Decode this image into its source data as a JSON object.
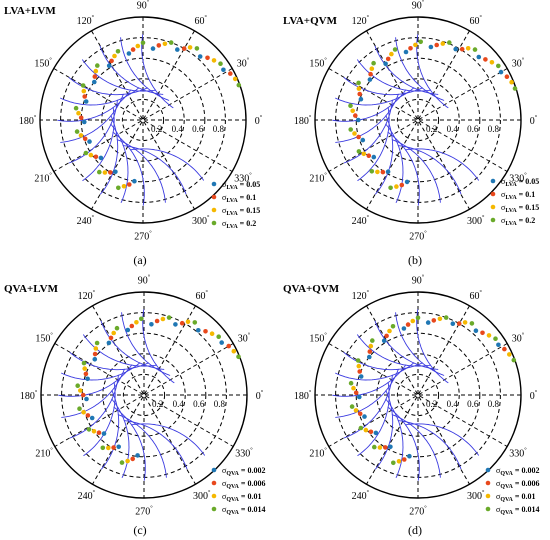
{
  "chart_data": [
    {
      "type": "scatter",
      "title": "LVA+LVM",
      "caption": "(a)",
      "angular_ticks": [
        "0",
        "30",
        "60",
        "90",
        "120",
        "150",
        "180",
        "210",
        "240",
        "270",
        "300",
        "330"
      ],
      "radial_ticks": [
        "0.2",
        "0.4",
        "0.6",
        "0.8"
      ],
      "rlim": [
        0,
        1
      ],
      "curve_color": "#3a3ae0",
      "legend": {
        "symbol": "σ",
        "subscript": "LVA",
        "series": [
          {
            "value": "0.05",
            "color": "#1f77b4"
          },
          {
            "value": "0.1",
            "color": "#e8481c"
          },
          {
            "value": "0.15",
            "color": "#f5b800"
          },
          {
            "value": "0.2",
            "color": "#6aaa2a"
          }
        ]
      },
      "curve_centers_deg": [
        45,
        60,
        75,
        90,
        105,
        120,
        135,
        150,
        165,
        180,
        195,
        210,
        225,
        240,
        255,
        270
      ],
      "series": [
        {
          "name": "σLVA = 0.05",
          "points": [
            [
              0.92,
              32
            ],
            [
              0.83,
              48
            ],
            [
              0.76,
              64
            ],
            [
              0.7,
              82
            ],
            [
              0.66,
              102
            ],
            [
              0.62,
              122
            ],
            [
              0.6,
              142
            ],
            [
              0.58,
              162
            ],
            [
              0.57,
              182
            ],
            [
              0.56,
              202
            ],
            [
              0.55,
              222
            ],
            [
              0.57,
              242
            ],
            [
              0.6,
              262
            ]
          ]
        },
        {
          "name": "σLVA = 0.1",
          "points": [
            [
              0.96,
              28
            ],
            [
              0.87,
              44
            ],
            [
              0.8,
              60
            ],
            [
              0.74,
              78
            ],
            [
              0.69,
              98
            ],
            [
              0.65,
              118
            ],
            [
              0.63,
              138
            ],
            [
              0.61,
              158
            ],
            [
              0.6,
              178
            ],
            [
              0.59,
              198
            ],
            [
              0.58,
              218
            ],
            [
              0.6,
              238
            ],
            [
              0.64,
              258
            ]
          ]
        },
        {
          "name": "σLVA = 0.15",
          "points": [
            [
              0.98,
              24
            ],
            [
              0.9,
              40
            ],
            [
              0.84,
              57
            ],
            [
              0.77,
              74
            ],
            [
              0.72,
              94
            ],
            [
              0.68,
              114
            ],
            [
              0.66,
              134
            ],
            [
              0.64,
              154
            ],
            [
              0.63,
              174
            ],
            [
              0.62,
              194
            ],
            [
              0.61,
              214
            ],
            [
              0.63,
              234
            ],
            [
              0.67,
              254
            ]
          ]
        },
        {
          "name": "σLVA = 0.2",
          "points": [
            [
              0.99,
              20
            ],
            [
              0.93,
              36
            ],
            [
              0.87,
              53
            ],
            [
              0.8,
              70
            ],
            [
              0.75,
              90
            ],
            [
              0.71,
              110
            ],
            [
              0.69,
              130
            ],
            [
              0.67,
              150
            ],
            [
              0.66,
              170
            ],
            [
              0.65,
              190
            ],
            [
              0.64,
              210
            ],
            [
              0.66,
              230
            ],
            [
              0.7,
              250
            ]
          ]
        }
      ]
    },
    {
      "type": "scatter",
      "title": "LVA+QVM",
      "caption": "(b)",
      "angular_ticks": [
        "0",
        "30",
        "60",
        "90",
        "120",
        "150",
        "180",
        "210",
        "240",
        "270",
        "300",
        "330"
      ],
      "radial_ticks": [
        "0.2",
        "0.4",
        "0.6",
        "0.8"
      ],
      "rlim": [
        0,
        1
      ],
      "curve_color": "#3a3ae0",
      "legend": {
        "symbol": "σ",
        "subscript": "LVA",
        "series": [
          {
            "value": "0.05",
            "color": "#1f77b4"
          },
          {
            "value": "0.1",
            "color": "#e8481c"
          },
          {
            "value": "0.15",
            "color": "#f5b800"
          },
          {
            "value": "0.2",
            "color": "#6aaa2a"
          }
        ]
      },
      "curve_centers_deg": [
        45,
        60,
        75,
        90,
        105,
        120,
        135,
        150,
        165,
        180,
        195,
        210,
        225,
        240,
        255,
        270
      ],
      "series": [
        {
          "name": "σLVA = 0.05",
          "points": [
            [
              0.93,
              30
            ],
            [
              0.85,
              46
            ],
            [
              0.78,
              62
            ],
            [
              0.72,
              80
            ],
            [
              0.67,
              100
            ],
            [
              0.63,
              120
            ],
            [
              0.61,
              140
            ],
            [
              0.59,
              160
            ],
            [
              0.58,
              180
            ],
            [
              0.57,
              200
            ],
            [
              0.56,
              220
            ],
            [
              0.58,
              240
            ],
            [
              0.61,
              260
            ]
          ]
        },
        {
          "name": "σLVA = 0.1",
          "points": [
            [
              0.96,
              26
            ],
            [
              0.88,
              42
            ],
            [
              0.81,
              58
            ],
            [
              0.75,
              76
            ],
            [
              0.7,
              96
            ],
            [
              0.66,
              116
            ],
            [
              0.64,
              136
            ],
            [
              0.62,
              156
            ],
            [
              0.61,
              176
            ],
            [
              0.6,
              196
            ],
            [
              0.59,
              216
            ],
            [
              0.61,
              236
            ],
            [
              0.65,
              256
            ]
          ]
        },
        {
          "name": "σLVA = 0.15",
          "points": [
            [
              0.98,
              22
            ],
            [
              0.91,
              38
            ],
            [
              0.85,
              55
            ],
            [
              0.78,
              72
            ],
            [
              0.73,
              92
            ],
            [
              0.69,
              112
            ],
            [
              0.67,
              132
            ],
            [
              0.65,
              152
            ],
            [
              0.64,
              172
            ],
            [
              0.63,
              192
            ],
            [
              0.62,
              212
            ],
            [
              0.64,
              232
            ],
            [
              0.68,
              252
            ]
          ]
        },
        {
          "name": "σLVA = 0.2",
          "points": [
            [
              0.99,
              18
            ],
            [
              0.94,
              34
            ],
            [
              0.88,
              51
            ],
            [
              0.81,
              68
            ],
            [
              0.76,
              88
            ],
            [
              0.72,
              108
            ],
            [
              0.7,
              128
            ],
            [
              0.68,
              148
            ],
            [
              0.67,
              168
            ],
            [
              0.66,
              188
            ],
            [
              0.65,
              208
            ],
            [
              0.67,
              228
            ],
            [
              0.71,
              248
            ]
          ]
        }
      ]
    },
    {
      "type": "scatter",
      "title": "QVA+LVM",
      "caption": "(c)",
      "angular_ticks": [
        "0",
        "30",
        "60",
        "90",
        "120",
        "150",
        "180",
        "210",
        "240",
        "270",
        "300",
        "330"
      ],
      "radial_ticks": [
        "0.2",
        "0.4",
        "0.6",
        "0.8"
      ],
      "rlim": [
        0,
        1
      ],
      "curve_color": "#3a3ae0",
      "legend": {
        "symbol": "σ",
        "subscript": "QVA",
        "series": [
          {
            "value": "0.002",
            "color": "#1f77b4"
          },
          {
            "value": "0.006",
            "color": "#e8481c"
          },
          {
            "value": "0.01",
            "color": "#f5b800"
          },
          {
            "value": "0.014",
            "color": "#6aaa2a"
          }
        ]
      },
      "curve_centers_deg": [
        45,
        60,
        75,
        90,
        105,
        120,
        135,
        150,
        165,
        180,
        195,
        210,
        225,
        240,
        255,
        270
      ],
      "series": [
        {
          "name": "σQVA = 0.002",
          "points": [
            [
              0.91,
              34
            ],
            [
              0.82,
              50
            ],
            [
              0.75,
              66
            ],
            [
              0.69,
              84
            ],
            [
              0.65,
              104
            ],
            [
              0.61,
              124
            ],
            [
              0.59,
              144
            ],
            [
              0.57,
              164
            ],
            [
              0.56,
              184
            ],
            [
              0.55,
              204
            ],
            [
              0.54,
              224
            ],
            [
              0.56,
              244
            ],
            [
              0.59,
              264
            ]
          ]
        },
        {
          "name": "σQVA = 0.006",
          "points": [
            [
              0.95,
              30
            ],
            [
              0.86,
              46
            ],
            [
              0.79,
              62
            ],
            [
              0.73,
              80
            ],
            [
              0.68,
              100
            ],
            [
              0.64,
              120
            ],
            [
              0.62,
              140
            ],
            [
              0.6,
              160
            ],
            [
              0.59,
              180
            ],
            [
              0.58,
              200
            ],
            [
              0.57,
              220
            ],
            [
              0.59,
              240
            ],
            [
              0.63,
              260
            ]
          ]
        },
        {
          "name": "σQVA = 0.01",
          "points": [
            [
              0.97,
              26
            ],
            [
              0.89,
              42
            ],
            [
              0.83,
              59
            ],
            [
              0.76,
              76
            ],
            [
              0.71,
              96
            ],
            [
              0.67,
              116
            ],
            [
              0.65,
              136
            ],
            [
              0.63,
              156
            ],
            [
              0.62,
              176
            ],
            [
              0.61,
              196
            ],
            [
              0.6,
              216
            ],
            [
              0.62,
              236
            ],
            [
              0.66,
              256
            ]
          ]
        },
        {
          "name": "σQVA = 0.014",
          "points": [
            [
              0.99,
              22
            ],
            [
              0.92,
              38
            ],
            [
              0.86,
              55
            ],
            [
              0.79,
              72
            ],
            [
              0.74,
              92
            ],
            [
              0.7,
              112
            ],
            [
              0.68,
              132
            ],
            [
              0.66,
              152
            ],
            [
              0.65,
              172
            ],
            [
              0.64,
              192
            ],
            [
              0.63,
              212
            ],
            [
              0.65,
              232
            ],
            [
              0.69,
              252
            ]
          ]
        }
      ]
    },
    {
      "type": "scatter",
      "title": "QVA+QVM",
      "caption": "(d)",
      "angular_ticks": [
        "0",
        "30",
        "60",
        "90",
        "120",
        "150",
        "180",
        "210",
        "240",
        "270",
        "300",
        "330"
      ],
      "radial_ticks": [
        "0.2",
        "0.4",
        "0.6",
        "0.8"
      ],
      "rlim": [
        0,
        1
      ],
      "curve_color": "#3a3ae0",
      "legend": {
        "symbol": "σ",
        "subscript": "QVA",
        "series": [
          {
            "value": "0.002",
            "color": "#1f77b4"
          },
          {
            "value": "0.006",
            "color": "#e8481c"
          },
          {
            "value": "0.01",
            "color": "#f5b800"
          },
          {
            "value": "0.014",
            "color": "#6aaa2a"
          }
        ]
      },
      "curve_centers_deg": [
        45,
        60,
        75,
        90,
        105,
        120,
        135,
        150,
        165,
        180,
        195,
        210,
        225,
        240,
        255,
        270
      ],
      "series": [
        {
          "name": "σQVA = 0.002",
          "points": [
            [
              0.92,
              32
            ],
            [
              0.84,
              48
            ],
            [
              0.77,
              64
            ],
            [
              0.71,
              82
            ],
            [
              0.66,
              102
            ],
            [
              0.62,
              122
            ],
            [
              0.6,
              142
            ],
            [
              0.58,
              162
            ],
            [
              0.57,
              182
            ],
            [
              0.56,
              202
            ],
            [
              0.55,
              222
            ],
            [
              0.57,
              242
            ],
            [
              0.6,
              262
            ]
          ]
        },
        {
          "name": "σQVA = 0.006",
          "points": [
            [
              0.95,
              28
            ],
            [
              0.87,
              44
            ],
            [
              0.8,
              60
            ],
            [
              0.74,
              78
            ],
            [
              0.69,
              98
            ],
            [
              0.65,
              118
            ],
            [
              0.63,
              138
            ],
            [
              0.61,
              158
            ],
            [
              0.6,
              178
            ],
            [
              0.59,
              198
            ],
            [
              0.58,
              218
            ],
            [
              0.6,
              238
            ],
            [
              0.64,
              258
            ]
          ]
        },
        {
          "name": "σQVA = 0.01",
          "points": [
            [
              0.97,
              24
            ],
            [
              0.9,
              40
            ],
            [
              0.84,
              57
            ],
            [
              0.77,
              74
            ],
            [
              0.72,
              94
            ],
            [
              0.68,
              114
            ],
            [
              0.66,
              134
            ],
            [
              0.64,
              154
            ],
            [
              0.63,
              174
            ],
            [
              0.62,
              194
            ],
            [
              0.61,
              214
            ],
            [
              0.63,
              234
            ],
            [
              0.67,
              254
            ]
          ]
        },
        {
          "name": "σQVA = 0.014",
          "points": [
            [
              0.99,
              20
            ],
            [
              0.93,
              36
            ],
            [
              0.87,
              53
            ],
            [
              0.8,
              70
            ],
            [
              0.75,
              90
            ],
            [
              0.71,
              110
            ],
            [
              0.69,
              130
            ],
            [
              0.67,
              150
            ],
            [
              0.66,
              170
            ],
            [
              0.65,
              190
            ],
            [
              0.64,
              210
            ],
            [
              0.66,
              230
            ],
            [
              0.7,
              250
            ]
          ]
        }
      ]
    }
  ]
}
